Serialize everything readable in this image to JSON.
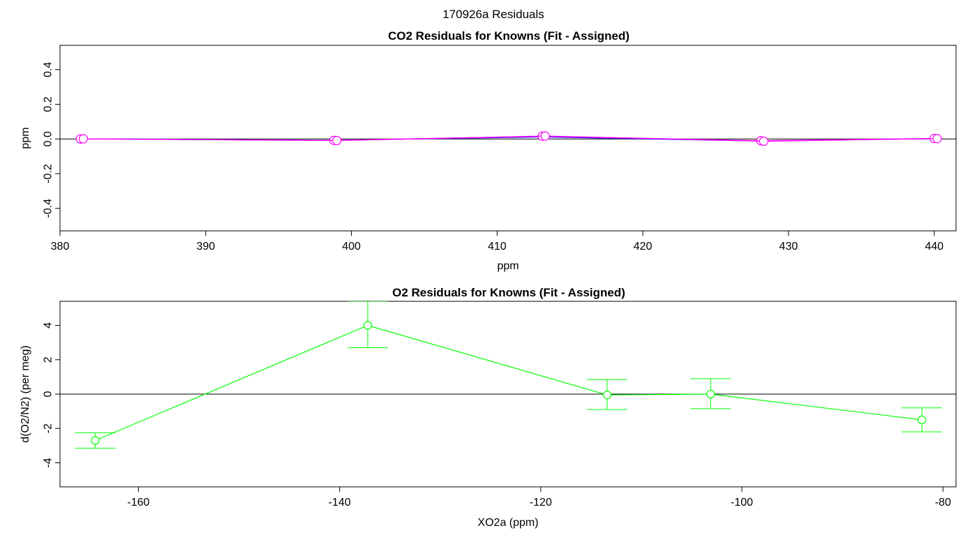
{
  "figure": {
    "title": "170926a  Residuals"
  },
  "chart_data": [
    {
      "type": "scatter",
      "title": "CO2 Residuals for Knowns (Fit - Assigned)",
      "xlabel": "ppm",
      "ylabel": "ppm",
      "xlim": [
        380,
        441.5
      ],
      "ylim": [
        -0.53,
        0.54
      ],
      "x_ticks": [
        380,
        390,
        400,
        410,
        420,
        430,
        440
      ],
      "x_tick_labels": [
        "380",
        "390",
        "400",
        "410",
        "420",
        "430",
        "440"
      ],
      "y_ticks": [
        -0.4,
        -0.2,
        0.0,
        0.2,
        0.4
      ],
      "y_tick_labels": [
        "-0.4",
        "-0.2",
        "0.0",
        "0.2",
        "0.4"
      ],
      "reference_line_y": 0,
      "grid": false,
      "legend": "none",
      "series": [
        {
          "color": "#0000ff",
          "markers": false,
          "x": [
            381.3,
            398.7,
            413.0,
            428.0,
            440.3
          ],
          "y": [
            0.001,
            -0.008,
            0.012,
            -0.012,
            0.002
          ]
        },
        {
          "color": "#a020f0",
          "markers": false,
          "x": [
            381.5,
            398.9,
            413.2,
            428.2,
            440.5
          ],
          "y": [
            0.0,
            -0.009,
            0.015,
            -0.011,
            0.003
          ]
        },
        {
          "color": "#ff00ff",
          "markers": true,
          "x": [
            381.4,
            398.8,
            413.1,
            428.1,
            440.0
          ],
          "y": [
            0.0,
            -0.008,
            0.016,
            -0.01,
            0.003
          ]
        },
        {
          "color": "#ff00ff",
          "markers": true,
          "x": [
            381.6,
            399.0,
            413.3,
            428.3,
            440.2
          ],
          "y": [
            0.001,
            -0.009,
            0.017,
            -0.013,
            0.002
          ]
        }
      ]
    },
    {
      "type": "line",
      "title": "O2 Residuals for Knowns (Fit - Assigned)",
      "xlabel": "XO2a (ppm)",
      "ylabel": "d(O2/N2) (per meg)",
      "xlim": [
        -167.8,
        -78.7
      ],
      "ylim": [
        -5.4,
        5.4
      ],
      "x_ticks": [
        -160,
        -140,
        -120,
        -100,
        -80
      ],
      "x_tick_labels": [
        "-160",
        "-140",
        "-120",
        "-100",
        "-80"
      ],
      "y_ticks": [
        -4,
        -2,
        0,
        2,
        4
      ],
      "y_tick_labels": [
        "-4",
        "-2",
        "0",
        "2",
        "4"
      ],
      "reference_line_y": 0,
      "grid": false,
      "legend": "none",
      "series": [
        {
          "color": "#00ff00",
          "markers": true,
          "x": [
            -164.3,
            -137.2,
            -113.4,
            -103.1,
            -82.1
          ],
          "y": [
            -2.7,
            4.0,
            -0.05,
            0.0,
            -1.5
          ],
          "err_low": [
            -3.15,
            2.7,
            -0.9,
            -0.85,
            -2.2
          ],
          "err_high": [
            -2.25,
            5.4,
            0.85,
            0.9,
            -0.8
          ]
        }
      ]
    }
  ]
}
